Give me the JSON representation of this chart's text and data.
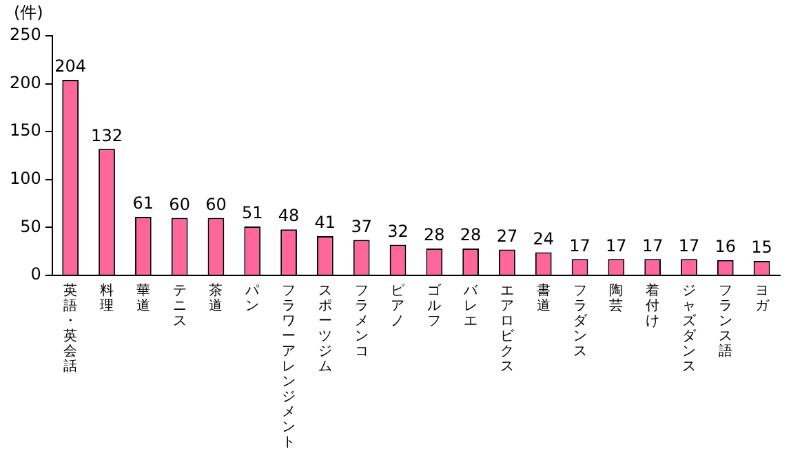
{
  "chart_data": {
    "type": "bar",
    "ylabel": "(件)",
    "categories": [
      "英語・英会話",
      "料理",
      "華道",
      "テニス",
      "茶道",
      "パン",
      "フラワーアレンジメント",
      "スポーツジム",
      "フラメンコ",
      "ピアノ",
      "ゴルフ",
      "バレエ",
      "エアロビクス",
      "書道",
      "フラダンス",
      "陶芸",
      "着付け",
      "ジャズダンス",
      "フランス語",
      "ヨガ"
    ],
    "values": [
      204,
      132,
      61,
      60,
      60,
      51,
      48,
      41,
      37,
      32,
      28,
      28,
      27,
      24,
      17,
      17,
      17,
      17,
      16,
      15
    ],
    "color": "#ff6699",
    "ylim": [
      0,
      250
    ],
    "yticks": [
      0,
      50,
      100,
      150,
      200,
      250
    ],
    "grid": false,
    "legend": false,
    "data_labels": true
  }
}
